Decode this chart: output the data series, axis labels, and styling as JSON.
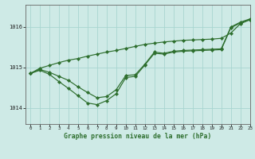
{
  "title": "Graphe pression niveau de la mer (hPa)",
  "bg_color": "#ceeae6",
  "grid_color": "#a8d5d0",
  "line_color": "#2d6e2d",
  "xlim": [
    -0.5,
    23
  ],
  "ylim": [
    1013.6,
    1016.55
  ],
  "yticks": [
    1014,
    1015,
    1016
  ],
  "xtick_labels": [
    "0",
    "1",
    "2",
    "3",
    "4",
    "5",
    "6",
    "7",
    "8",
    "9",
    "10",
    "11",
    "12",
    "13",
    "14",
    "15",
    "16",
    "17",
    "18",
    "19",
    "20",
    "21",
    "22",
    "23"
  ],
  "line_straight": [
    1014.85,
    1014.98,
    1015.05,
    1015.12,
    1015.18,
    1015.22,
    1015.28,
    1015.33,
    1015.38,
    1015.42,
    1015.47,
    1015.52,
    1015.57,
    1015.6,
    1015.63,
    1015.65,
    1015.67,
    1015.68,
    1015.69,
    1015.7,
    1015.72,
    1015.85,
    1016.08,
    1016.18
  ],
  "line_mid": [
    1014.85,
    1014.95,
    1014.88,
    1014.78,
    1014.68,
    1014.52,
    1014.38,
    1014.25,
    1014.28,
    1014.45,
    1014.8,
    1014.82,
    1015.08,
    1015.38,
    1015.35,
    1015.4,
    1015.42,
    1015.43,
    1015.44,
    1015.45,
    1015.46,
    1016.0,
    1016.12,
    1016.2
  ],
  "line_jagged": [
    1014.85,
    1014.93,
    1014.83,
    1014.65,
    1014.48,
    1014.3,
    1014.12,
    1014.08,
    1014.18,
    1014.35,
    1014.75,
    1014.78,
    1015.06,
    1015.35,
    1015.33,
    1015.38,
    1015.4,
    1015.41,
    1015.42,
    1015.43,
    1015.44,
    1015.98,
    1016.1,
    1016.18
  ]
}
